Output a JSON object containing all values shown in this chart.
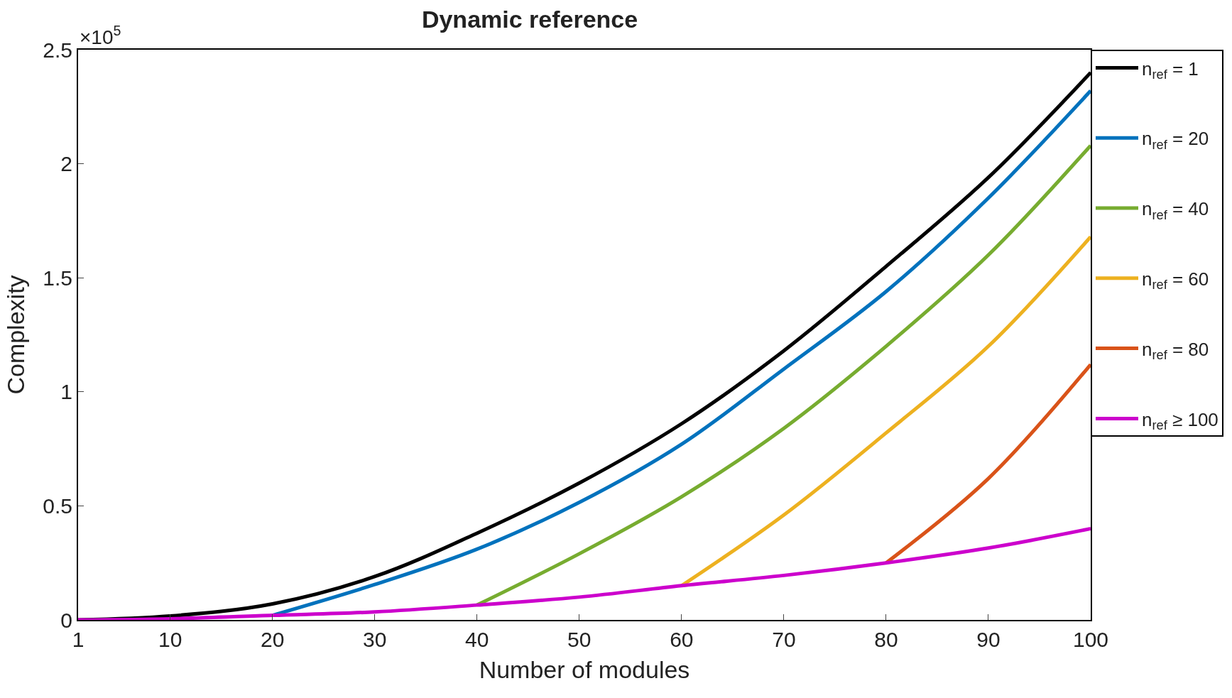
{
  "chart_data": {
    "type": "line",
    "title": "Dynamic reference",
    "xlabel": "Number of modules",
    "ylabel": "Complexity",
    "annotations": [
      "×10$^{5}$"
    ],
    "xlim": [
      1,
      100
    ],
    "xticks": [
      1,
      10,
      20,
      30,
      40,
      50,
      60,
      70,
      80,
      90,
      100
    ],
    "ylim": [
      0,
      2.5
    ],
    "yticks": [
      0,
      0.5,
      1,
      1.5,
      2,
      2.5
    ],
    "legend": "right",
    "marker": "none",
    "line_style": "solid",
    "series": [
      {
        "name": "n$_{ref}$ = 1",
        "color": "#000000",
        "x": [
          1,
          10,
          20,
          30,
          40,
          50,
          60,
          70,
          80,
          90,
          100
        ],
        "values": [
          0,
          0.017,
          0.07,
          0.19,
          0.38,
          0.6,
          0.86,
          1.18,
          1.55,
          1.94,
          2.4
        ]
      },
      {
        "name": "n$_{ref}$ = 20",
        "color": "#0072bd",
        "x": [
          20,
          30,
          40,
          50,
          60,
          70,
          80,
          90,
          100
        ],
        "values": [
          0.02,
          0.155,
          0.31,
          0.515,
          0.77,
          1.1,
          1.44,
          1.85,
          2.32
        ]
      },
      {
        "name": "n$_{ref}$ = 40",
        "color": "#77ac30",
        "x": [
          40,
          50,
          60,
          70,
          80,
          90,
          100
        ],
        "values": [
          0.065,
          0.29,
          0.54,
          0.84,
          1.2,
          1.6,
          2.08
        ]
      },
      {
        "name": "n$_{ref}$ = 60",
        "color": "#edb120",
        "x": [
          60,
          70,
          80,
          90,
          100
        ],
        "values": [
          0.15,
          0.46,
          0.82,
          1.2,
          1.68
        ]
      },
      {
        "name": "n$_{ref}$ = 80",
        "color": "#d95319",
        "x": [
          80,
          90,
          100
        ],
        "values": [
          0.25,
          0.62,
          1.12
        ]
      },
      {
        "name": "n$_{ref}$ ≥ 100",
        "color": "#cc00cc",
        "x": [
          1,
          10,
          20,
          30,
          40,
          50,
          60,
          70,
          80,
          90,
          100
        ],
        "values": [
          0,
          0.005,
          0.02,
          0.035,
          0.065,
          0.1,
          0.15,
          0.195,
          0.25,
          0.315,
          0.4
        ]
      }
    ]
  }
}
